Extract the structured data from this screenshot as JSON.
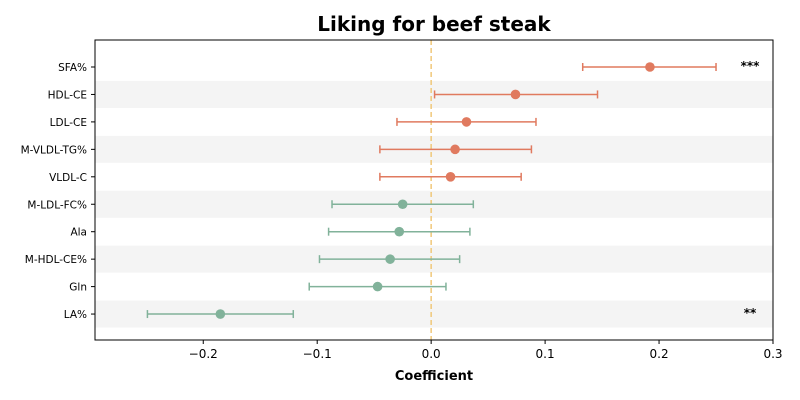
{
  "chart_data": {
    "type": "forest",
    "title": "Liking for beef steak",
    "xlabel": "Coefficient",
    "xlim": [
      -0.295,
      0.3
    ],
    "x_ticks": [
      -0.2,
      -0.1,
      0.0,
      0.1,
      0.2,
      0.3
    ],
    "x_tick_labels": [
      "−0.2",
      "−0.1",
      "0.0",
      "0.1",
      "0.2",
      "0.3"
    ],
    "reference_line": 0.0,
    "reference_line_color": "#f0c87a",
    "positive_color": "#e07a5f",
    "negative_color": "#81b29a",
    "stripe_color": "#f4f4f4",
    "grid": false,
    "series": [
      {
        "label": "SFA%",
        "coef": 0.192,
        "ci_low": 0.133,
        "ci_high": 0.25,
        "significance": "***"
      },
      {
        "label": "HDL-CE",
        "coef": 0.074,
        "ci_low": 0.003,
        "ci_high": 0.146,
        "significance": ""
      },
      {
        "label": "LDL-CE",
        "coef": 0.031,
        "ci_low": -0.03,
        "ci_high": 0.092,
        "significance": ""
      },
      {
        "label": "M-VLDL-TG%",
        "coef": 0.021,
        "ci_low": -0.045,
        "ci_high": 0.088,
        "significance": ""
      },
      {
        "label": "VLDL-C",
        "coef": 0.017,
        "ci_low": -0.045,
        "ci_high": 0.079,
        "significance": ""
      },
      {
        "label": "M-LDL-FC%",
        "coef": -0.025,
        "ci_low": -0.087,
        "ci_high": 0.037,
        "significance": ""
      },
      {
        "label": "Ala",
        "coef": -0.028,
        "ci_low": -0.09,
        "ci_high": 0.034,
        "significance": ""
      },
      {
        "label": "M-HDL-CE%",
        "coef": -0.036,
        "ci_low": -0.098,
        "ci_high": 0.025,
        "significance": ""
      },
      {
        "label": "Gln",
        "coef": -0.047,
        "ci_low": -0.107,
        "ci_high": 0.013,
        "significance": ""
      },
      {
        "label": "LA%",
        "coef": -0.185,
        "ci_low": -0.249,
        "ci_high": -0.121,
        "significance": "**"
      }
    ]
  }
}
